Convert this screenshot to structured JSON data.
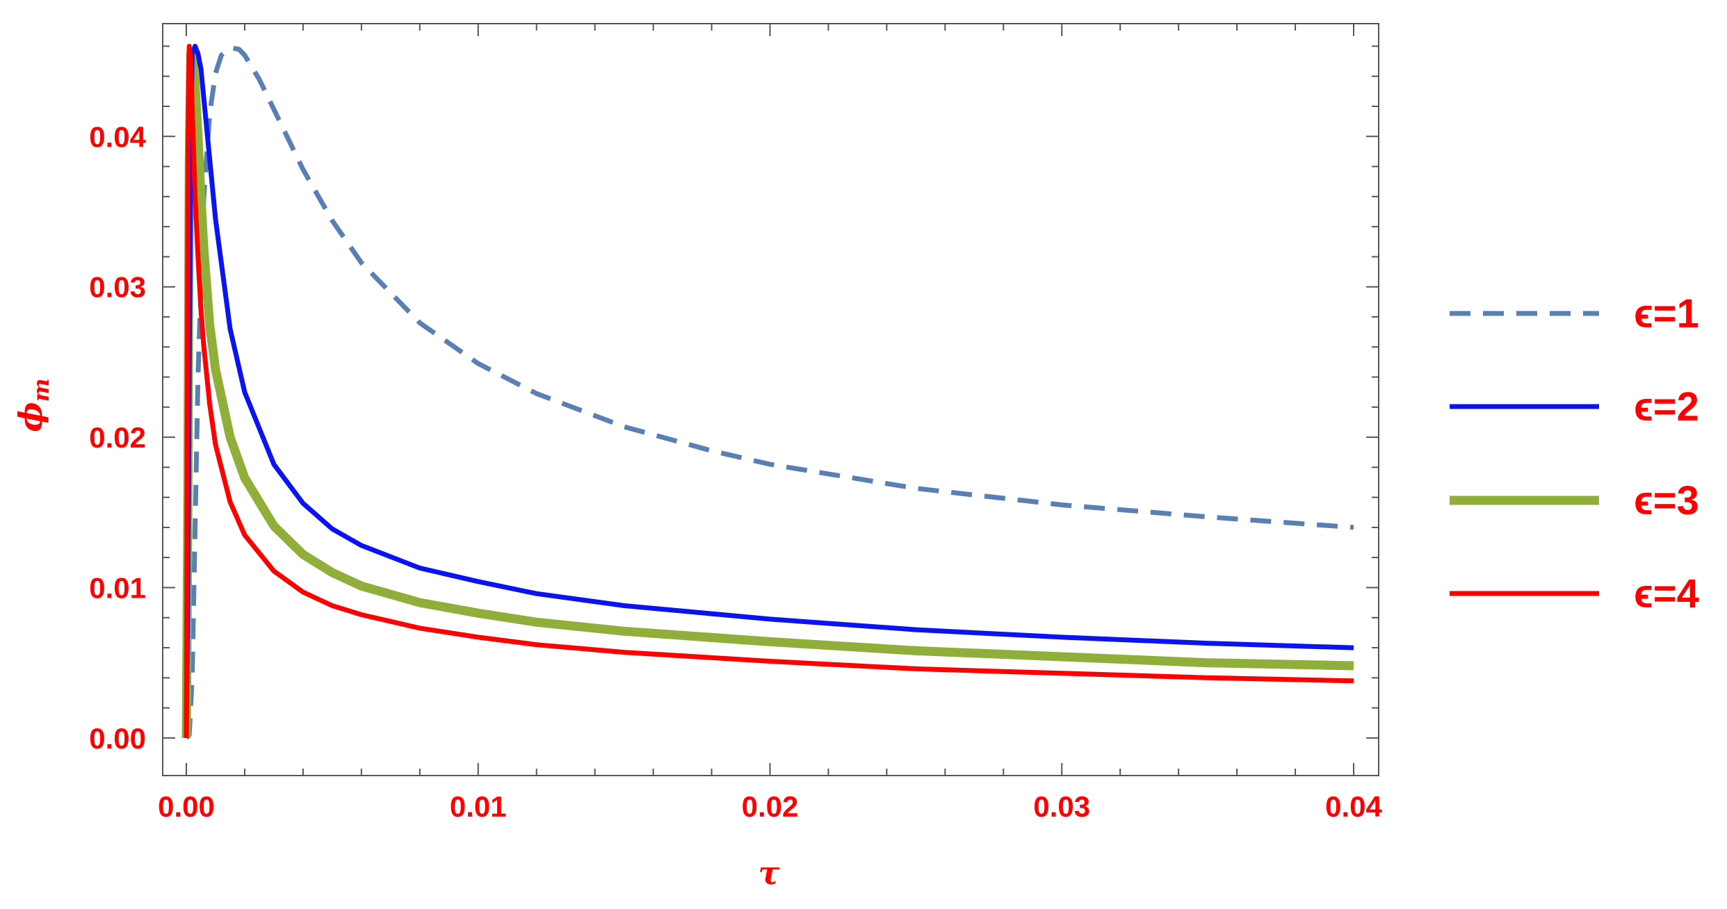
{
  "chart_data": {
    "type": "line",
    "title": "",
    "xlabel": "τ",
    "ylabel_main": "ϕ",
    "ylabel_sub": "m",
    "xlim": [
      0,
      0.04
    ],
    "ylim": [
      -0.0025,
      0.0475
    ],
    "grid": false,
    "legend_position": "right",
    "label_color": "#ff0000",
    "x_ticks": [
      0.0,
      0.01,
      0.02,
      0.03,
      0.04
    ],
    "x_tick_labels": [
      "0.00",
      "0.01",
      "0.02",
      "0.03",
      "0.04"
    ],
    "y_ticks": [
      0.0,
      0.01,
      0.02,
      0.03,
      0.04
    ],
    "y_tick_labels": [
      "0.00",
      "0.01",
      "0.02",
      "0.03",
      "0.04"
    ],
    "series": [
      {
        "name": "ϵ=1",
        "color": "#5a7fb5",
        "dash": "dashed",
        "x": [
          0.0,
          0.0001,
          0.0002,
          0.0003,
          0.0004,
          0.0006,
          0.0008,
          0.001,
          0.0012,
          0.0015,
          0.0018,
          0.002,
          0.0025,
          0.003,
          0.004,
          0.005,
          0.006,
          0.008,
          0.01,
          0.012,
          0.015,
          0.018,
          0.02,
          0.025,
          0.03,
          0.035,
          0.04
        ],
        "y": [
          0.0,
          0.0002,
          0.004,
          0.014,
          0.024,
          0.036,
          0.0415,
          0.0442,
          0.0454,
          0.0459,
          0.0458,
          0.0454,
          0.0438,
          0.0418,
          0.0378,
          0.0344,
          0.0316,
          0.0276,
          0.0249,
          0.0229,
          0.0207,
          0.0191,
          0.0182,
          0.0166,
          0.0155,
          0.0147,
          0.014
        ]
      },
      {
        "name": "ϵ=2",
        "color": "#0b14f0",
        "dash": "solid",
        "x": [
          0.0,
          5e-05,
          0.0001,
          0.00015,
          0.0002,
          0.0003,
          0.0004,
          0.0005,
          0.0006,
          0.0008,
          0.001,
          0.0015,
          0.002,
          0.003,
          0.004,
          0.005,
          0.006,
          0.008,
          0.01,
          0.012,
          0.015,
          0.02,
          0.025,
          0.03,
          0.035,
          0.04
        ],
        "y": [
          0.0,
          0.01,
          0.025,
          0.039,
          0.0455,
          0.046,
          0.0455,
          0.0445,
          0.0425,
          0.0385,
          0.0345,
          0.0272,
          0.023,
          0.0182,
          0.0156,
          0.0139,
          0.0128,
          0.0113,
          0.0104,
          0.0096,
          0.0088,
          0.0079,
          0.0072,
          0.0067,
          0.0063,
          0.006
        ]
      },
      {
        "name": "ϵ=3",
        "color": "#8fae3a",
        "dash": "solid",
        "x": [
          0.0,
          5e-05,
          0.0001,
          0.00015,
          0.0002,
          0.0003,
          0.0004,
          0.0005,
          0.0006,
          0.0008,
          0.001,
          0.0015,
          0.002,
          0.003,
          0.004,
          0.005,
          0.006,
          0.008,
          0.01,
          0.012,
          0.015,
          0.02,
          0.025,
          0.03,
          0.035,
          0.04
        ],
        "y": [
          0.0,
          0.015,
          0.038,
          0.0455,
          0.0455,
          0.0435,
          0.04,
          0.036,
          0.0325,
          0.0275,
          0.0245,
          0.02,
          0.0173,
          0.0141,
          0.0122,
          0.011,
          0.0101,
          0.009,
          0.0083,
          0.0077,
          0.0071,
          0.0064,
          0.0058,
          0.0054,
          0.005,
          0.0048
        ]
      },
      {
        "name": "ϵ=4",
        "color": "#ff0000",
        "dash": "solid",
        "x": [
          0.0,
          3e-05,
          6e-05,
          0.0001,
          0.00015,
          0.0002,
          0.0003,
          0.0004,
          0.0005,
          0.0006,
          0.0008,
          0.001,
          0.0015,
          0.002,
          0.003,
          0.004,
          0.005,
          0.006,
          0.008,
          0.01,
          0.012,
          0.015,
          0.02,
          0.025,
          0.03,
          0.035,
          0.04
        ],
        "y": [
          0.0,
          0.02,
          0.04,
          0.046,
          0.045,
          0.042,
          0.036,
          0.032,
          0.0285,
          0.026,
          0.0222,
          0.0195,
          0.0157,
          0.0135,
          0.0111,
          0.0097,
          0.0088,
          0.0082,
          0.0073,
          0.0067,
          0.0062,
          0.0057,
          0.0051,
          0.0046,
          0.0043,
          0.004,
          0.0038
        ]
      }
    ]
  }
}
